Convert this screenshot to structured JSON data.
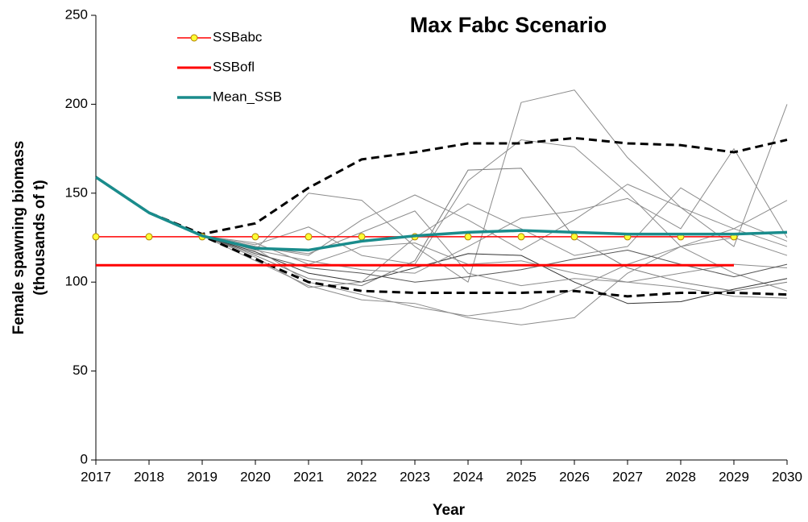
{
  "chart_data": {
    "type": "line",
    "title": "Max Fabc Scenario",
    "x_label": "Year",
    "y_label": [
      "Female spawning biomass",
      "(thousands of t)"
    ],
    "x": [
      2017,
      2018,
      2019,
      2020,
      2021,
      2022,
      2023,
      2024,
      2025,
      2026,
      2027,
      2028,
      2029,
      2030
    ],
    "xlim": [
      2017,
      2030
    ],
    "xticks": [
      2017,
      2018,
      2019,
      2020,
      2021,
      2022,
      2023,
      2024,
      2025,
      2026,
      2027,
      2028,
      2029,
      2030
    ],
    "ylim": [
      0,
      250
    ],
    "yticks": [
      0,
      50,
      100,
      150,
      200,
      250
    ],
    "legend": "upper left",
    "series": [
      {
        "color": "#8c8c8c",
        "width": 1,
        "values": [
          159,
          139,
          126,
          118,
          150,
          146,
          120,
          100,
          201,
          208,
          170,
          142,
          130,
          120
        ]
      },
      {
        "color": "#8c8c8c",
        "width": 1,
        "values": [
          159,
          139,
          126,
          120,
          115,
          135,
          149,
          135,
          118,
          135,
          155,
          142,
          120,
          200
        ]
      },
      {
        "color": "#7a7a7a",
        "width": 1,
        "values": [
          159,
          139,
          126,
          115,
          102,
          98,
          112,
          163,
          164,
          125,
          108,
          100,
          95,
          100
        ]
      },
      {
        "color": "#8c8c8c",
        "width": 1,
        "values": [
          159,
          139,
          126,
          112,
          98,
          90,
          88,
          80,
          76,
          80,
          105,
          120,
          130,
          146
        ]
      },
      {
        "color": "#8c8c8c",
        "width": 1,
        "values": [
          159,
          139,
          126,
          121,
          131,
          115,
          110,
          157,
          180,
          176,
          150,
          120,
          105,
          95
        ]
      },
      {
        "color": "#333333",
        "width": 1,
        "values": [
          159,
          139,
          126,
          117,
          105,
          100,
          108,
          116,
          115,
          100,
          88,
          89,
          96,
          102
        ]
      },
      {
        "color": "#8c8c8c",
        "width": 1,
        "values": [
          159,
          139,
          126,
          119,
          100,
          93,
          86,
          81,
          85,
          96,
          110,
          120,
          125,
          115
        ]
      },
      {
        "color": "#8c8c8c",
        "width": 1,
        "values": [
          159,
          139,
          126,
          114,
          97,
          100,
          125,
          144,
          130,
          115,
          120,
          153,
          135,
          123
        ]
      },
      {
        "color": "#8c8c8c",
        "width": 1,
        "values": [
          159,
          139,
          126,
          122,
          110,
          120,
          122,
          110,
          112,
          105,
          100,
          105,
          110,
          108
        ]
      },
      {
        "color": "#555555",
        "width": 1,
        "values": [
          159,
          139,
          126,
          116,
          108,
          105,
          100,
          103,
          107,
          113,
          118,
          110,
          103,
          110
        ]
      },
      {
        "color": "#8c8c8c",
        "width": 1,
        "values": [
          159,
          139,
          126,
          120,
          116,
          128,
          140,
          105,
          98,
          102,
          100,
          97,
          92,
          91
        ]
      },
      {
        "color": "#8c8c8c",
        "width": 1,
        "values": [
          159,
          139,
          126,
          118,
          112,
          107,
          105,
          120,
          136,
          140,
          147,
          130,
          175,
          125
        ]
      },
      {
        "color": "#000000",
        "width": 3,
        "dash": true,
        "values": [
          159,
          139,
          127,
          133,
          153,
          169,
          173,
          178,
          178,
          181,
          178,
          177,
          173,
          180
        ]
      },
      {
        "color": "#000000",
        "width": 3,
        "dash": true,
        "values": [
          159,
          139,
          126,
          113,
          100,
          95,
          94,
          94,
          94,
          95,
          92,
          94,
          94,
          93
        ]
      },
      {
        "name": "SSBofl",
        "color": "#ff0000",
        "width": 3,
        "values": [
          109.5,
          109.5,
          109.5,
          109.5,
          109.5,
          109.5,
          109.5,
          109.5,
          109.5,
          109.5,
          109.5,
          109.5,
          109.5,
          null
        ]
      },
      {
        "name": "SSBabc",
        "color": "#ff0000",
        "width": 1.5,
        "marker": "#ffff33",
        "values": [
          125.5,
          125.5,
          125.5,
          125.5,
          125.5,
          125.5,
          125.5,
          125.5,
          125.5,
          125.5,
          125.5,
          125.5,
          125.5,
          null
        ]
      },
      {
        "name": "Mean_SSB",
        "color": "#1a8c8c",
        "width": 3.5,
        "values": [
          159,
          139,
          126,
          119,
          118,
          123,
          126,
          128,
          129,
          128,
          127,
          127,
          127,
          128
        ]
      }
    ]
  }
}
